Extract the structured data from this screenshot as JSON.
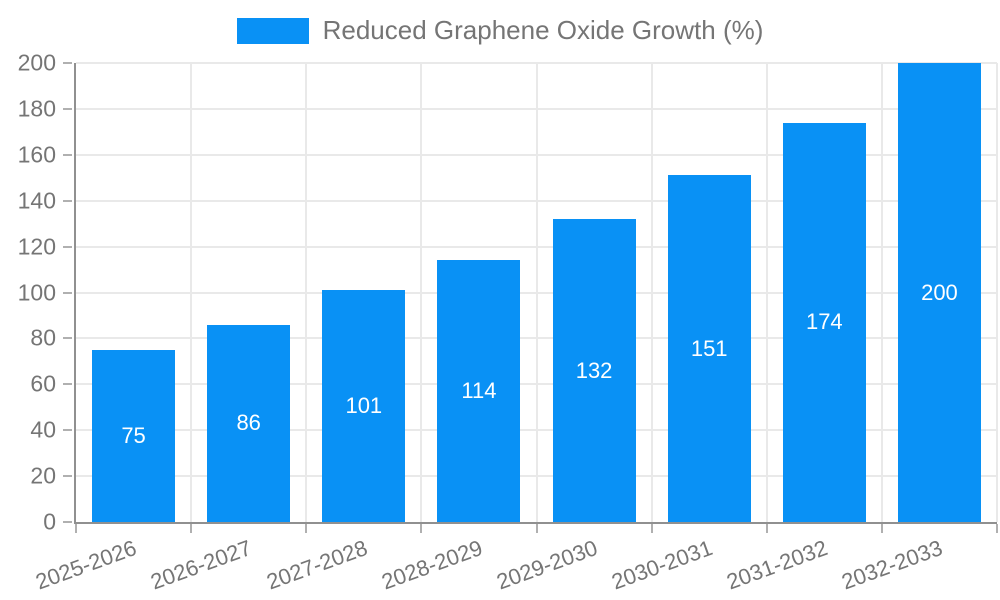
{
  "chart_data": {
    "type": "bar",
    "title": "",
    "legend": {
      "label": "Reduced Graphene Oxide Growth (%)",
      "position": "top"
    },
    "categories": [
      "2025-2026",
      "2026-2027",
      "2027-2028",
      "2028-2029",
      "2029-2030",
      "2030-2031",
      "2031-2032",
      "2032-2033"
    ],
    "series": [
      {
        "name": "Reduced Graphene Oxide Growth (%)",
        "values": [
          75,
          86,
          101,
          114,
          132,
          151,
          174,
          200
        ]
      }
    ],
    "xlabel": "",
    "ylabel": "",
    "ylim": [
      0,
      200
    ],
    "yticks": [
      0,
      20,
      40,
      60,
      80,
      100,
      120,
      140,
      160,
      180,
      200
    ],
    "grid": true,
    "bar_value_labels_inside": true,
    "x_label_rotation_deg": -20,
    "colors": {
      "bar": "#0991f5",
      "bar_label": "#ffffff",
      "axis_line": "#909090",
      "grid_line": "#e9e9e9",
      "tick": "#b0b0b0",
      "text": "#757575",
      "background": "#ffffff"
    }
  }
}
